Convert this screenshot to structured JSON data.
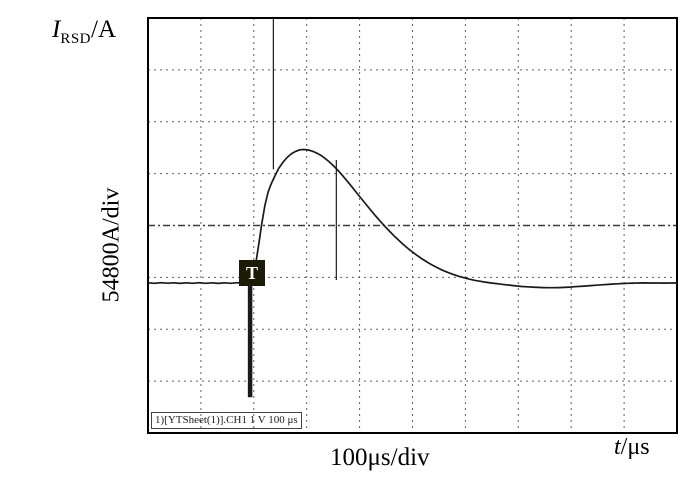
{
  "labels": {
    "y_axis_symbol": "I",
    "y_axis_subscript": "RSD",
    "y_axis_unit_suffix": "/A",
    "y_scale": "54800A/div",
    "x_scale": "100μs/div",
    "x_axis_symbol": "t",
    "x_axis_unit_suffix": "/μs",
    "trigger_marker": "T",
    "status_line": "1)[YTSheet(1)].CH1 1 V 100 μs"
  },
  "colors": {
    "background": "#ffffff",
    "trace": "#1a1a1a",
    "grid": "#606060",
    "grid_center": "#3d3d3d",
    "border": "#000000",
    "trigger_box_bg": "#1b1b06",
    "trigger_box_text": "#ffffff"
  },
  "chart_data": {
    "type": "line",
    "xlabel": "t/μs",
    "ylabel": "I_RSD/A",
    "x_per_div_us": 100,
    "y_per_div_A": 54800,
    "divisions": {
      "x": 10,
      "y": 8
    },
    "x_range_us": [
      -197,
      803
    ],
    "y_range_A": [
      -158300,
      279800
    ],
    "grid": true,
    "trigger": {
      "t_us": 0,
      "level_A": 10600
    },
    "cursor_line": {
      "t_us": 159,
      "from_A": 129900,
      "to_A": 3200
    },
    "spike_up": {
      "t_us": 40,
      "from_A": 120000,
      "to_A": 279800
    },
    "spike_down": {
      "t_us": -4,
      "from_A": 0,
      "to_A": -120500
    },
    "series": [
      {
        "name": "CH1",
        "points": [
          [
            -197,
            300
          ],
          [
            -185,
            -300
          ],
          [
            -172,
            400
          ],
          [
            -160,
            -200
          ],
          [
            -148,
            300
          ],
          [
            -136,
            -400
          ],
          [
            -124,
            300
          ],
          [
            -112,
            -300
          ],
          [
            -100,
            400
          ],
          [
            -88,
            -300
          ],
          [
            -76,
            300
          ],
          [
            -64,
            -400
          ],
          [
            -52,
            300
          ],
          [
            -40,
            -300
          ],
          [
            -28,
            400
          ],
          [
            -16,
            -200
          ],
          [
            -8,
            300
          ],
          [
            -3,
            0
          ],
          [
            0,
            2000
          ],
          [
            6,
            18000
          ],
          [
            12,
            40000
          ],
          [
            18,
            62000
          ],
          [
            24,
            82000
          ],
          [
            30,
            96000
          ],
          [
            36,
            105000
          ],
          [
            42,
            112000
          ],
          [
            50,
            121000
          ],
          [
            58,
            127500
          ],
          [
            66,
            132500
          ],
          [
            74,
            136500
          ],
          [
            82,
            139000
          ],
          [
            90,
            140700
          ],
          [
            98,
            141000
          ],
          [
            106,
            140500
          ],
          [
            114,
            139200
          ],
          [
            122,
            137200
          ],
          [
            130,
            134700
          ],
          [
            138,
            131500
          ],
          [
            146,
            127800
          ],
          [
            154,
            123600
          ],
          [
            162,
            119000
          ],
          [
            170,
            114000
          ],
          [
            180,
            107400
          ],
          [
            190,
            100500
          ],
          [
            200,
            93500
          ],
          [
            210,
            86600
          ],
          [
            220,
            79700
          ],
          [
            230,
            73000
          ],
          [
            240,
            66500
          ],
          [
            250,
            60300
          ],
          [
            260,
            54400
          ],
          [
            270,
            48800
          ],
          [
            280,
            43500
          ],
          [
            290,
            38600
          ],
          [
            300,
            34000
          ],
          [
            310,
            29800
          ],
          [
            320,
            25900
          ],
          [
            330,
            22300
          ],
          [
            340,
            19100
          ],
          [
            350,
            16200
          ],
          [
            360,
            13500
          ],
          [
            370,
            11200
          ],
          [
            380,
            9100
          ],
          [
            390,
            7200
          ],
          [
            400,
            5600
          ],
          [
            410,
            4200
          ],
          [
            420,
            2900
          ],
          [
            430,
            1900
          ],
          [
            440,
            1000
          ],
          [
            450,
            200
          ],
          [
            460,
            -500
          ],
          [
            470,
            -1200
          ],
          [
            480,
            -1900
          ],
          [
            490,
            -2500
          ],
          [
            500,
            -3100
          ],
          [
            510,
            -3600
          ],
          [
            520,
            -4000
          ],
          [
            530,
            -4300
          ],
          [
            540,
            -4600
          ],
          [
            550,
            -4800
          ],
          [
            560,
            -4900
          ],
          [
            570,
            -4900
          ],
          [
            580,
            -4800
          ],
          [
            590,
            -4600
          ],
          [
            600,
            -4300
          ],
          [
            610,
            -3900
          ],
          [
            620,
            -3500
          ],
          [
            630,
            -3100
          ],
          [
            640,
            -2700
          ],
          [
            650,
            -2300
          ],
          [
            660,
            -1900
          ],
          [
            670,
            -1500
          ],
          [
            680,
            -1100
          ],
          [
            690,
            -800
          ],
          [
            700,
            -500
          ],
          [
            710,
            -300
          ],
          [
            720,
            -100
          ],
          [
            730,
            100
          ],
          [
            740,
            200
          ],
          [
            750,
            100
          ],
          [
            760,
            0
          ],
          [
            770,
            100
          ],
          [
            780,
            -100
          ],
          [
            790,
            100
          ],
          [
            803,
            0
          ]
        ]
      }
    ]
  }
}
